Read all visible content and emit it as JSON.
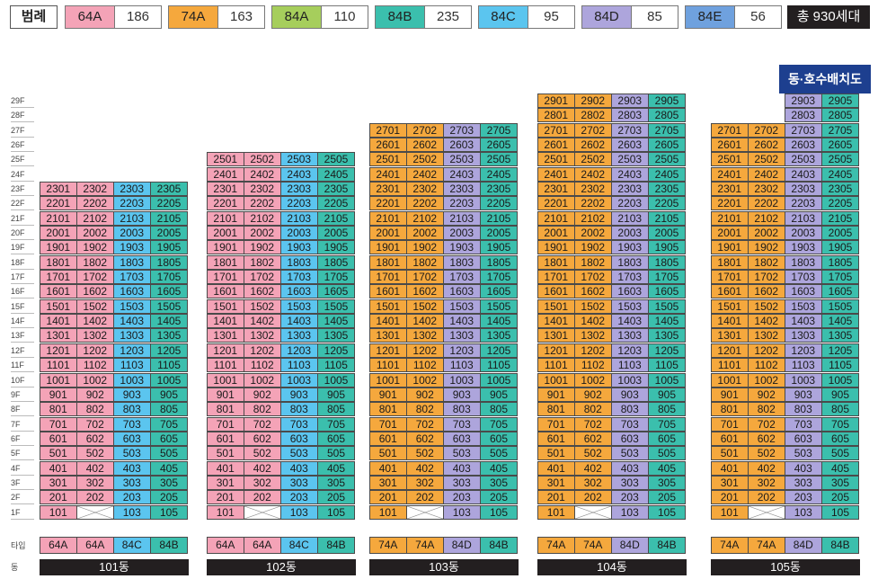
{
  "legend": {
    "title": "범례",
    "items": [
      {
        "type": "64A",
        "count": "186",
        "color": "#f4a3b7"
      },
      {
        "type": "74A",
        "count": "163",
        "color": "#f5a83d"
      },
      {
        "type": "84A",
        "count": "110",
        "color": "#a6ce5c"
      },
      {
        "type": "84B",
        "count": "235",
        "color": "#3bbfad"
      },
      {
        "type": "84C",
        "count": "95",
        "color": "#5bc5ef"
      },
      {
        "type": "84D",
        "count": "85",
        "color": "#ada5dc"
      },
      {
        "type": "84E",
        "count": "56",
        "color": "#6fa1de"
      }
    ],
    "total": "총 930세대"
  },
  "map_button": "동·호수배치도",
  "floors": [
    "1F",
    "2F",
    "3F",
    "4F",
    "5F",
    "6F",
    "7F",
    "8F",
    "9F",
    "10F",
    "11F",
    "12F",
    "13F",
    "14F",
    "15F",
    "16F",
    "17F",
    "18F",
    "19F",
    "20F",
    "21F",
    "22F",
    "23F",
    "24F",
    "25F",
    "26F",
    "27F",
    "28F",
    "29F"
  ],
  "type_row_label": "타입",
  "dong_row_label": "동",
  "buildings": [
    {
      "name": "101동",
      "types": [
        "64A",
        "64A",
        "84C",
        "84B"
      ],
      "max_floor": [
        23,
        23,
        23,
        23
      ],
      "min_floor": [
        1,
        1,
        1,
        1
      ],
      "blank_1f": [
        false,
        true,
        false,
        false
      ],
      "lines": [
        "01",
        "02",
        "03",
        "05"
      ]
    },
    {
      "name": "102동",
      "types": [
        "64A",
        "64A",
        "84C",
        "84B"
      ],
      "max_floor": [
        25,
        25,
        25,
        25
      ],
      "min_floor": [
        1,
        1,
        1,
        1
      ],
      "blank_1f": [
        false,
        true,
        false,
        false
      ],
      "lines": [
        "01",
        "02",
        "03",
        "05"
      ]
    },
    {
      "name": "103동",
      "types": [
        "74A",
        "74A",
        "84D",
        "84B"
      ],
      "max_floor": [
        27,
        27,
        27,
        27
      ],
      "min_floor": [
        1,
        1,
        1,
        1
      ],
      "blank_1f": [
        false,
        true,
        false,
        false
      ],
      "lines": [
        "01",
        "02",
        "03",
        "05"
      ]
    },
    {
      "name": "104동",
      "types": [
        "74A",
        "74A",
        "84D",
        "84B"
      ],
      "max_floor": [
        29,
        29,
        29,
        29
      ],
      "min_floor": [
        1,
        1,
        1,
        1
      ],
      "blank_1f": [
        false,
        true,
        false,
        false
      ],
      "lines": [
        "01",
        "02",
        "03",
        "05"
      ]
    },
    {
      "name": "105동",
      "types": [
        "74A",
        "74A",
        "84D",
        "84B"
      ],
      "max_floor": [
        27,
        27,
        29,
        29
      ],
      "min_floor": [
        1,
        1,
        1,
        1
      ],
      "blank_1f": [
        false,
        true,
        false,
        false
      ],
      "lines": [
        "01",
        "02",
        "03",
        "05"
      ]
    }
  ]
}
